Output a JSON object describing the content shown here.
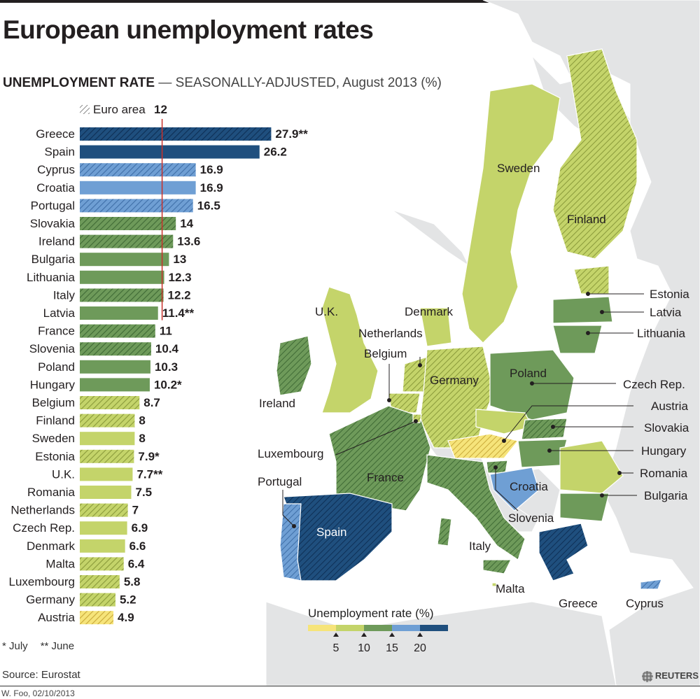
{
  "title": "European unemployment rates",
  "subtitle": {
    "bold": "UNEMPLOYMENT RATE",
    "rest": " — SEASONALLY-ADJUSTED, August 2013 (%)"
  },
  "colors": {
    "c5": "#f6e47a",
    "c5_10": "#c4d46a",
    "c10_15": "#6e9a5a",
    "c15_20": "#6f9fd4",
    "c20": "#1f4f7e",
    "euro_line": "#c8302a"
  },
  "chart_data": {
    "type": "bar",
    "orientation": "horizontal",
    "categories": [
      "Greece",
      "Spain",
      "Cyprus",
      "Croatia",
      "Portugal",
      "Slovakia",
      "Ireland",
      "Bulgaria",
      "Lithuania",
      "Italy",
      "Latvia",
      "France",
      "Slovenia",
      "Poland",
      "Hungary",
      "Belgium",
      "Finland",
      "Sweden",
      "Estonia",
      "U.K.",
      "Romania",
      "Netherlands",
      "Czech Rep.",
      "Denmark",
      "Malta",
      "Luxembourg",
      "Germany",
      "Austria"
    ],
    "values": [
      27.9,
      26.2,
      16.9,
      16.9,
      16.5,
      14,
      13.6,
      13,
      12.3,
      12.2,
      11.4,
      11,
      10.4,
      10.3,
      10.2,
      8.7,
      8,
      8,
      7.9,
      7.7,
      7.5,
      7,
      6.9,
      6.6,
      6.4,
      5.8,
      5.2,
      4.9
    ],
    "value_labels": [
      "27.9**",
      "26.2",
      "16.9",
      "16.9",
      "16.5",
      "14",
      "13.6",
      "13",
      "12.3",
      "12.2",
      "11.4**",
      "11",
      "10.4",
      "10.3",
      "10.2*",
      "8.7",
      "8",
      "8",
      "7.9*",
      "7.7**",
      "7.5",
      "7",
      "6.9",
      "6.6",
      "6.4",
      "5.8",
      "5.2",
      "4.9"
    ],
    "euro_area": [
      true,
      false,
      true,
      false,
      true,
      true,
      true,
      false,
      false,
      true,
      false,
      true,
      true,
      false,
      false,
      true,
      true,
      false,
      true,
      false,
      false,
      true,
      false,
      false,
      true,
      true,
      true,
      true
    ],
    "reference": {
      "label": "Euro area",
      "value": 12
    },
    "xlim": [
      0,
      30
    ],
    "title": "UNEMPLOYMENT RATE",
    "xlabel": "",
    "ylabel": ""
  },
  "footnotes": [
    "* July",
    "** June"
  ],
  "source": "Source: Eurostat",
  "credit": "W. Foo, 02/10/2013",
  "brand": "REUTERS",
  "legend": {
    "title": "Unemployment rate (%)",
    "ticks": [
      "5",
      "10",
      "15",
      "20"
    ]
  },
  "map_labels": {
    "sweden": "Sweden",
    "finland": "Finland",
    "uk": "U.K.",
    "denmark": "Denmark",
    "netherlands": "Netherlands",
    "belgium": "Belgium",
    "germany": "Germany",
    "poland": "Poland",
    "ireland": "Ireland",
    "luxembourg": "Luxembourg",
    "france": "France",
    "portugal": "Portugal",
    "spain": "Spain",
    "italy": "Italy",
    "malta": "Malta",
    "croatia": "Croatia",
    "slovenia": "Slovenia",
    "greece": "Greece",
    "cyprus": "Cyprus",
    "estonia": "Estonia",
    "latvia": "Latvia",
    "lithuania": "Lithuania",
    "czech": "Czech Rep.",
    "austria": "Austria",
    "slovakia": "Slovakia",
    "hungary": "Hungary",
    "romania": "Romania",
    "bulgaria": "Bulgaria"
  }
}
